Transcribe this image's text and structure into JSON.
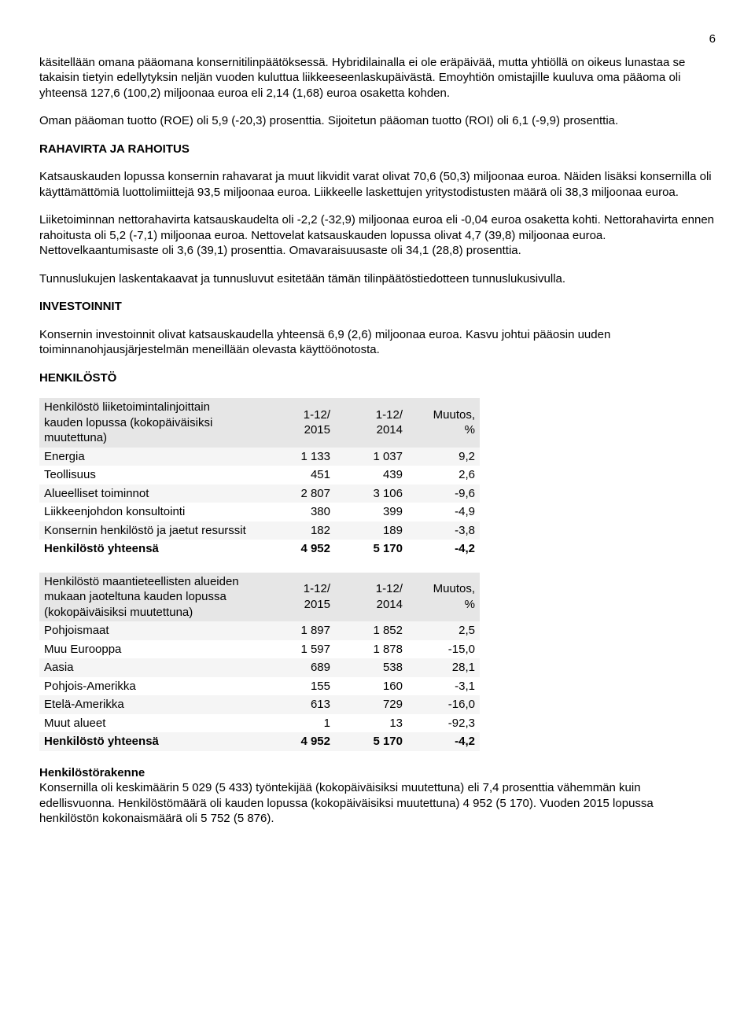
{
  "page_number": "6",
  "para1": "käsitellään omana pääomana konsernitilinpäätöksessä. Hybridilainalla ei ole eräpäivää, mutta yhtiöllä on oikeus lunastaa se takaisin tietyin edellytyksin neljän vuoden kuluttua liikkeeseenlaskupäivästä. Emoyhtiön omistajille kuuluva oma pääoma oli yhteensä 127,6 (100,2) miljoonaa euroa eli 2,14 (1,68) euroa osaketta kohden.",
  "para2": "Oman pääoman tuotto (ROE) oli 5,9 (-20,3) prosenttia. Sijoitetun pääoman tuotto (ROI) oli 6,1 (-9,9) prosenttia.",
  "heading_rahavirta": "RAHAVIRTA JA RAHOITUS",
  "para3": "Katsauskauden lopussa konsernin rahavarat ja muut likvidit varat olivat 70,6 (50,3) miljoonaa euroa. Näiden lisäksi konsernilla oli käyttämättömiä luottolimiittejä 93,5 miljoonaa euroa. Liikkeelle laskettujen yritystodistusten määrä oli 38,3 miljoonaa euroa.",
  "para4": "Liiketoiminnan nettorahavirta katsauskaudelta oli -2,2 (-32,9) miljoonaa euroa eli -0,04 euroa osaketta kohti. Nettorahavirta ennen rahoitusta oli 5,2 (-7,1) miljoonaa euroa. Nettovelat katsauskauden lopussa olivat 4,7 (39,8) miljoonaa euroa. Nettovelkaantumisaste oli 3,6 (39,1) prosenttia. Omavaraisuusaste oli 34,1 (28,8) prosenttia.",
  "para5": "Tunnuslukujen laskentakaavat ja tunnusluvut esitetään tämän tilinpäätöstiedotteen tunnuslukusivulla.",
  "heading_invest": "INVESTOINNIT",
  "para6": "Konsernin investoinnit olivat katsauskaudella yhteensä 6,9 (2,6) miljoonaa euroa. Kasvu johtui pääosin uuden toiminnanohjausjärjestelmän meneillään olevasta käyttöönotosta.",
  "heading_henkilosto": "HENKILÖSTÖ",
  "table1": {
    "header_label_line1": "Henkilöstö liiketoimintalinjoittain",
    "header_label_line2": "kauden lopussa (kokopäiväisiksi",
    "header_label_line3": "muutettuna)",
    "col1_line1": "1-12/",
    "col1_line2": "2015",
    "col2_line1": "1-12/",
    "col2_line2": "2014",
    "col3_line1": "Muutos,",
    "col3_line2": "%",
    "rows": [
      {
        "label": "Energia",
        "c1": "1 133",
        "c2": "1 037",
        "c3": "9,2"
      },
      {
        "label": "Teollisuus",
        "c1": "451",
        "c2": "439",
        "c3": "2,6"
      },
      {
        "label": "Alueelliset toiminnot",
        "c1": "2 807",
        "c2": "3 106",
        "c3": "-9,6"
      },
      {
        "label": "Liikkeenjohdon konsultointi",
        "c1": "380",
        "c2": "399",
        "c3": "-4,9"
      },
      {
        "label": "Konsernin henkilöstö ja jaetut resurssit",
        "c1": "182",
        "c2": "189",
        "c3": "-3,8"
      }
    ],
    "total": {
      "label": "Henkilöstö yhteensä",
      "c1": "4 952",
      "c2": "5 170",
      "c3": "-4,2"
    }
  },
  "table2": {
    "header_label_line1": "Henkilöstö maantieteellisten alueiden",
    "header_label_line2": "mukaan jaoteltuna kauden lopussa",
    "header_label_line3": "(kokopäiväisiksi muutettuna)",
    "col1_line1": "1-12/",
    "col1_line2": "2015",
    "col2_line1": "1-12/",
    "col2_line2": "2014",
    "col3_line1": "Muutos,",
    "col3_line2": "%",
    "rows": [
      {
        "label": "Pohjoismaat",
        "c1": "1 897",
        "c2": "1 852",
        "c3": "2,5"
      },
      {
        "label": "Muu Eurooppa",
        "c1": "1 597",
        "c2": "1 878",
        "c3": "-15,0"
      },
      {
        "label": "Aasia",
        "c1": "689",
        "c2": "538",
        "c3": "28,1"
      },
      {
        "label": "Pohjois-Amerikka",
        "c1": "155",
        "c2": "160",
        "c3": "-3,1"
      },
      {
        "label": "Etelä-Amerikka",
        "c1": "613",
        "c2": "729",
        "c3": "-16,0"
      },
      {
        "label": "Muut alueet",
        "c1": "1",
        "c2": "13",
        "c3": "-92,3"
      }
    ],
    "total": {
      "label": "Henkilöstö yhteensä",
      "c1": "4 952",
      "c2": "5 170",
      "c3": "-4,2"
    }
  },
  "heading_rakenne": "Henkilöstörakenne",
  "para7": "Konsernilla oli keskimäärin 5 029 (5 433) työntekijää (kokopäiväisiksi muutettuna) eli 7,4 prosenttia vähemmän kuin edellisvuonna. Henkilöstömäärä oli kauden lopussa (kokopäiväisiksi muutettuna) 4 952 (5 170). Vuoden 2015 lopussa henkilöstön kokonaismäärä oli 5 752 (5 876)."
}
